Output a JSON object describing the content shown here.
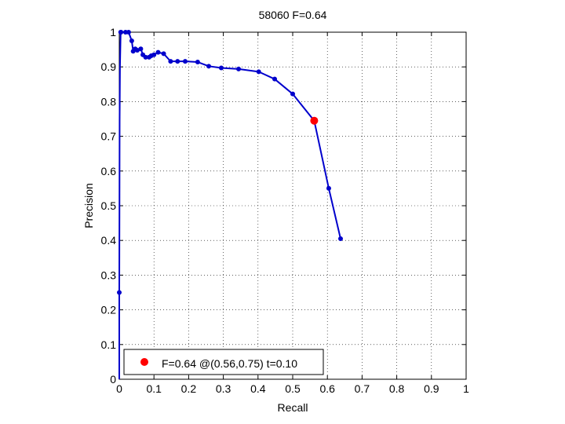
{
  "chart_data": {
    "type": "line",
    "title": "58060 F=0.64",
    "xlabel": "Recall",
    "ylabel": "Precision",
    "xlim": [
      0,
      1
    ],
    "ylim": [
      0,
      1
    ],
    "xticks": [
      "0",
      "0.1",
      "0.2",
      "0.3",
      "0.4",
      "0.5",
      "0.6",
      "0.7",
      "0.8",
      "0.9",
      "1"
    ],
    "yticks": [
      "0",
      "0.1",
      "0.2",
      "0.3",
      "0.4",
      "0.5",
      "0.6",
      "0.7",
      "0.8",
      "0.9",
      "1"
    ],
    "grid": true,
    "legend_position": "bottom-left",
    "series": [
      {
        "color": "#0000cc",
        "x": [
          0,
          0,
          0.0005,
          0.001,
          0.002,
          0.004,
          0.005,
          0.018,
          0.027,
          0.036,
          0.04,
          0.046,
          0.052,
          0.062,
          0.068,
          0.076,
          0.086,
          0.092,
          0.1,
          0.112,
          0.128,
          0.148,
          0.168,
          0.19,
          0.226,
          0.258,
          0.294,
          0.344,
          0.402,
          0.448,
          0.5,
          0.562,
          0.604,
          0.638
        ],
        "y": [
          0,
          0.25,
          0.48,
          0.75,
          0.9,
          1.0,
          1.0,
          1.0,
          1.0,
          0.975,
          0.945,
          0.952,
          0.948,
          0.952,
          0.935,
          0.928,
          0.928,
          0.932,
          0.935,
          0.942,
          0.938,
          0.916,
          0.916,
          0.916,
          0.914,
          0.902,
          0.897,
          0.894,
          0.886,
          0.865,
          0.822,
          0.745,
          0.55,
          0.405
        ],
        "markers": [
          false,
          true,
          false,
          false,
          false,
          true,
          true,
          true,
          true,
          true,
          true,
          true,
          true,
          true,
          true,
          true,
          true,
          true,
          true,
          true,
          true,
          true,
          true,
          true,
          true,
          true,
          true,
          true,
          true,
          true,
          true,
          false,
          true,
          true
        ]
      }
    ],
    "highlight_point": {
      "x": 0.562,
      "y": 0.745,
      "color": "#ff0000"
    },
    "legend": [
      {
        "label": "F=0.64 @(0.56,0.75) t=0.10",
        "color": "#ff0000"
      }
    ]
  }
}
